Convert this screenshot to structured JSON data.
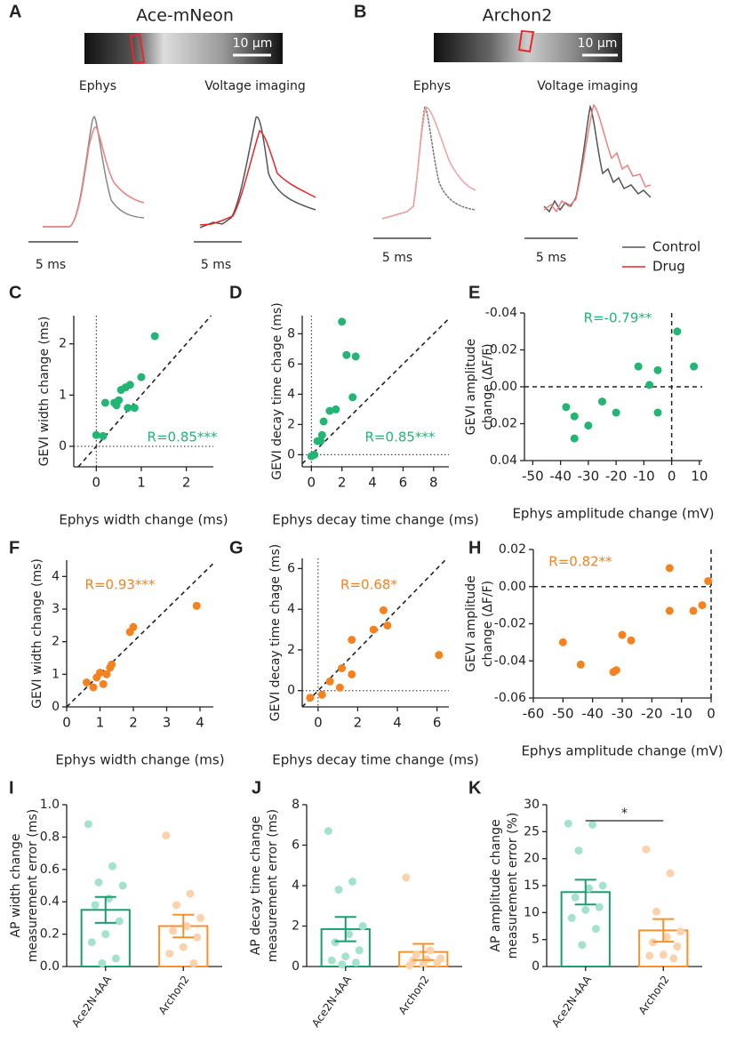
{
  "panels": [
    {
      "label": "A",
      "title": "Ace-mNeon",
      "scale_bar": "10 µm",
      "subtitles": [
        "Ephys",
        "Voltage imaging"
      ],
      "time_scale": "5 ms"
    },
    {
      "label": "B",
      "title": "Archon2",
      "scale_bar": "10 µm",
      "subtitles": [
        "Ephys",
        "Voltage imaging"
      ],
      "time_scale": "5 ms"
    }
  ],
  "legend": [
    {
      "name": "Control",
      "color": "#555555"
    },
    {
      "name": "Drug",
      "color": "#e8262a"
    }
  ],
  "chart_data": [
    {
      "type": "scatter",
      "panel": "C",
      "xlabel": "Ephys width change (ms)",
      "ylabel": [
        "GEVI width change (ms)"
      ],
      "annotation": "R=0.85***",
      "color": "#22b573",
      "x": [
        0.0,
        0.15,
        0.2,
        0.4,
        0.45,
        0.5,
        0.55,
        0.65,
        0.7,
        0.75,
        0.85,
        1.0,
        1.3
      ],
      "y": [
        0.22,
        0.2,
        0.85,
        0.85,
        0.8,
        0.9,
        1.1,
        1.15,
        0.75,
        1.2,
        0.75,
        1.35,
        2.15
      ],
      "xlim": [
        -0.5,
        2.6
      ],
      "ylim": [
        -0.4,
        2.55
      ],
      "xticks": [
        0,
        1,
        2
      ],
      "yticks": [
        0,
        1,
        2
      ],
      "identity_line": true,
      "zero_lines": "dotted"
    },
    {
      "type": "scatter",
      "panel": "D",
      "xlabel": "Ephys decay time change (ms)",
      "ylabel": [
        "GEVI decay time chage (ms)"
      ],
      "annotation": "R=0.85***",
      "color": "#22b573",
      "x": [
        0.0,
        0.2,
        0.4,
        0.6,
        0.7,
        0.8,
        1.2,
        1.6,
        2.0,
        2.3,
        2.7,
        2.9
      ],
      "y": [
        -0.1,
        0.0,
        0.9,
        0.9,
        1.3,
        2.2,
        2.9,
        3.0,
        8.8,
        6.6,
        3.8,
        6.5
      ],
      "xlim": [
        -0.6,
        9
      ],
      "ylim": [
        -0.8,
        9.2
      ],
      "xticks": [
        0,
        2,
        4,
        6,
        8
      ],
      "yticks": [
        0,
        2,
        4,
        6,
        8
      ],
      "identity_line": true,
      "zero_lines": "dotted"
    },
    {
      "type": "scatter",
      "panel": "E",
      "xlabel": "Ephys amplitude change (mV)",
      "ylabel": [
        "GEVI amplitude",
        "change (ΔF/F)"
      ],
      "annotation": "R=-0.79**",
      "color": "#22b573",
      "x": [
        2,
        8,
        -12,
        -5,
        -8,
        -5,
        -20,
        -25,
        -30,
        -35,
        -38,
        -35
      ],
      "y": [
        -0.03,
        -0.011,
        -0.011,
        -0.009,
        -0.001,
        0.014,
        0.014,
        0.008,
        0.021,
        0.016,
        0.011,
        0.028
      ],
      "xlim": [
        -53,
        11
      ],
      "ylim": [
        -0.04,
        0.04
      ],
      "y_inverted": true,
      "xticks": [
        -50,
        -40,
        -30,
        -20,
        -10,
        0,
        10
      ],
      "yticks": [
        -0.04,
        -0.02,
        {
          "value": 0,
          "label": "0.00"
        },
        0.02,
        0.04
      ],
      "identity_line": false,
      "zero_lines": "dashed"
    },
    {
      "type": "scatter",
      "panel": "F",
      "xlabel": "Ephys width change (ms)",
      "ylabel": [
        "GEVI width change (ms)"
      ],
      "annotation": "R=0.93***",
      "color": "#f5821f",
      "x": [
        0.6,
        0.8,
        0.9,
        1.0,
        1.1,
        1.2,
        1.3,
        1.35,
        1.9,
        2.0,
        3.9
      ],
      "y": [
        0.75,
        0.6,
        0.9,
        1.05,
        0.7,
        1.0,
        1.2,
        1.3,
        2.3,
        2.45,
        3.1
      ],
      "xlim": [
        0,
        4.4
      ],
      "ylim": [
        0,
        4.5
      ],
      "xticks": [
        0,
        1,
        2,
        3,
        4
      ],
      "yticks": [
        0,
        1,
        2,
        3,
        4
      ],
      "identity_line": true,
      "zero_lines": "none"
    },
    {
      "type": "scatter",
      "panel": "G",
      "xlabel": "Ephys decay time change (ms)",
      "ylabel": [
        "GEVI decay time chage (ms)"
      ],
      "annotation": "R=0.68*",
      "color": "#f5821f",
      "x": [
        -0.4,
        0.2,
        0.6,
        1.1,
        1.2,
        1.7,
        1.7,
        2.8,
        3.3,
        3.5,
        6.1
      ],
      "y": [
        -0.35,
        -0.2,
        0.45,
        0.15,
        1.1,
        2.5,
        0.8,
        3.0,
        3.95,
        3.2,
        1.75
      ],
      "xlim": [
        -0.8,
        6.6
      ],
      "ylim": [
        -0.8,
        6.5
      ],
      "xticks": [
        0,
        2,
        4,
        6
      ],
      "yticks": [
        0,
        2,
        4,
        6
      ],
      "identity_line": true,
      "zero_lines": "dotted"
    },
    {
      "type": "scatter",
      "panel": "H",
      "xlabel": "Ephys amplitude change (mV)",
      "ylabel": [
        "GEVI amplitude",
        "change (ΔF/F)"
      ],
      "annotation": "R=0.82**",
      "color": "#f5821f",
      "x": [
        -50,
        -44,
        -33,
        -32,
        -30,
        -27,
        -14,
        -14,
        -6,
        -3,
        -1
      ],
      "y": [
        -0.03,
        -0.042,
        -0.046,
        -0.045,
        -0.026,
        -0.029,
        0.01,
        -0.013,
        -0.013,
        -0.01,
        0.003
      ],
      "xlim": [
        -60,
        0
      ],
      "ylim": [
        -0.06,
        0.02
      ],
      "xticks": [
        -60,
        -50,
        -40,
        -30,
        -20,
        -10,
        0
      ],
      "yticks": [
        -0.06,
        -0.04,
        -0.02,
        {
          "value": 0,
          "label": "0.00"
        },
        0.02
      ],
      "identity_line": false,
      "zero_lines": "dashed"
    },
    {
      "type": "bar",
      "panel": "I",
      "ylabel": [
        "AP width change",
        "measurement error (ms)"
      ],
      "categories": [
        "Ace2N-4AA",
        "Archon2"
      ],
      "values": [
        0.35,
        0.25
      ],
      "errors": [
        0.08,
        0.07
      ],
      "points": [
        [
          0.88,
          0.62,
          0.52,
          0.5,
          0.42,
          0.38,
          0.28,
          0.2,
          0.15,
          0.05,
          0.02
        ],
        [
          0.81,
          0.45,
          0.38,
          0.3,
          0.25,
          0.22,
          0.18,
          0.12,
          0.08,
          0.02
        ]
      ],
      "colors": [
        "#1a9e6e",
        "#f5922f"
      ],
      "point_colors": [
        "#a3e3cb",
        "#fcd2ad"
      ],
      "ylim": [
        0,
        1
      ],
      "yticks": [
        {
          "value": 0,
          "label": "0.0"
        },
        0.2,
        0.4,
        0.6,
        0.8,
        {
          "value": 1,
          "label": "1.0"
        }
      ]
    },
    {
      "type": "bar",
      "panel": "J",
      "ylabel": [
        "AP decay time change",
        "measurement error (ms)"
      ],
      "categories": [
        "Ace2N-4AA",
        "Archon2"
      ],
      "values": [
        1.85,
        0.72
      ],
      "errors": [
        0.6,
        0.4
      ],
      "points": [
        [
          6.7,
          4.2,
          3.8,
          2.0,
          1.6,
          1.2,
          0.8,
          0.5,
          0.3,
          0.2,
          0.1
        ],
        [
          4.4,
          0.8,
          0.6,
          0.4,
          0.35,
          0.3,
          0.2,
          0.1,
          0.05
        ]
      ],
      "colors": [
        "#1a9e6e",
        "#f5922f"
      ],
      "point_colors": [
        "#a3e3cb",
        "#fcd2ad"
      ],
      "ylim": [
        0,
        8
      ],
      "yticks": [
        0,
        2,
        4,
        6,
        8
      ]
    },
    {
      "type": "bar",
      "panel": "K",
      "ylabel": [
        "AP amplitude change",
        "measurement error (%)"
      ],
      "categories": [
        "Ace2N-4AA",
        "Archon2"
      ],
      "values": [
        13.8,
        6.7
      ],
      "errors": [
        2.3,
        2.1
      ],
      "points": [
        [
          26.5,
          26.3,
          21.5,
          15,
          14.5,
          12.8,
          11,
          10.5,
          9,
          7,
          4
        ],
        [
          21.7,
          17.3,
          10.2,
          6.5,
          5.5,
          4.5,
          3.7,
          2.2,
          2.0,
          1.5
        ]
      ],
      "colors": [
        "#1a9e6e",
        "#f5922f"
      ],
      "point_colors": [
        "#a3e3cb",
        "#fcd2ad"
      ],
      "ylim": [
        0,
        30
      ],
      "yticks": [
        0,
        5,
        10,
        15,
        20,
        25,
        30
      ],
      "significance": "*"
    }
  ]
}
